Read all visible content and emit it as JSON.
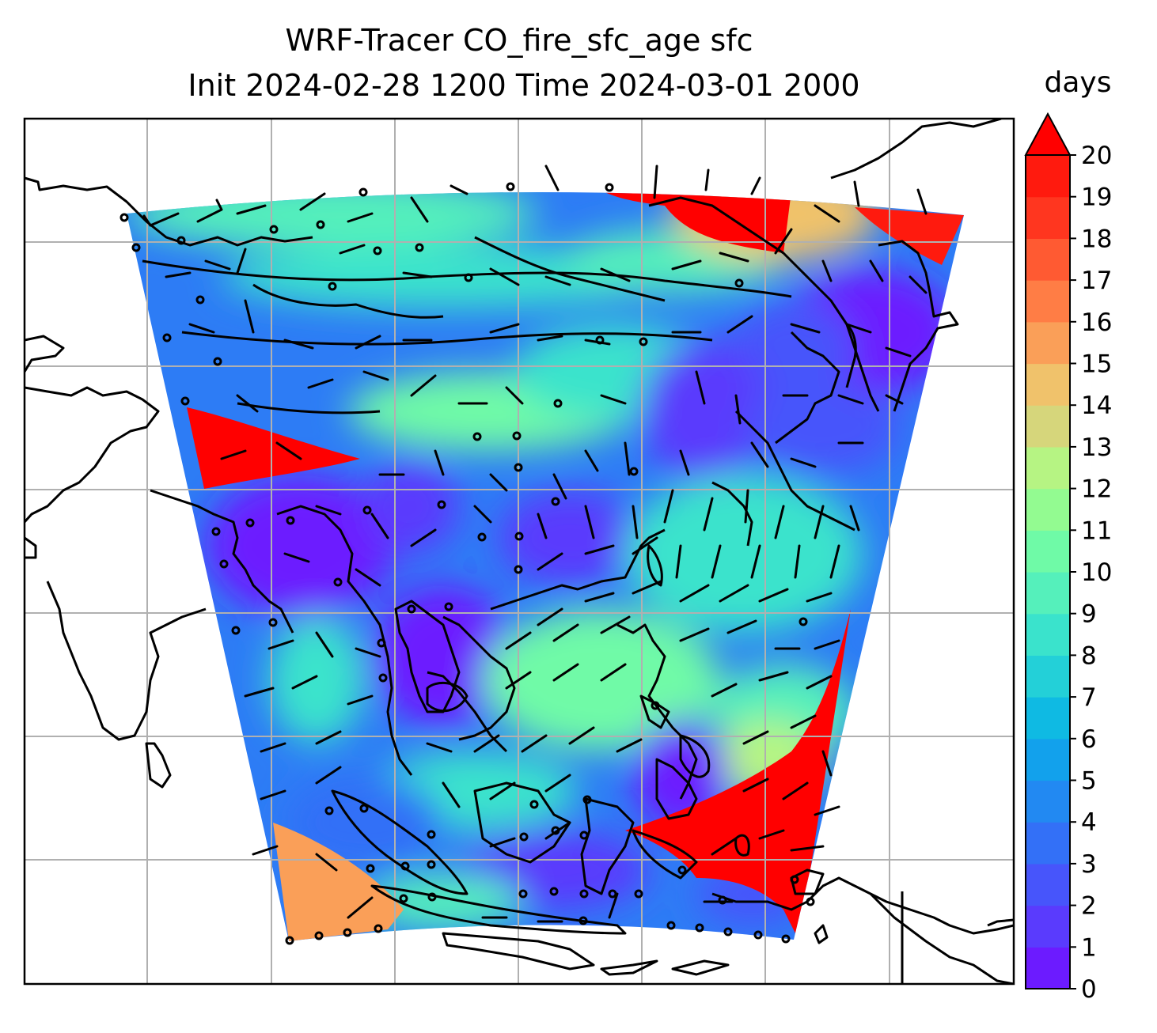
{
  "title": {
    "line1": "WRF-Tracer CO_fire_sfc_age sfc",
    "line2": "Init 2024-02-28 1200 Time 2024-03-01 2000"
  },
  "colorbar": {
    "label": "days",
    "extend": "max",
    "ticks": [
      "0",
      "1",
      "2",
      "3",
      "4",
      "5",
      "6",
      "7",
      "8",
      "9",
      "10",
      "11",
      "12",
      "13",
      "14",
      "15",
      "16",
      "17",
      "18",
      "19",
      "20"
    ],
    "colors": [
      "#6c1bff",
      "#5a3bfd",
      "#4755fb",
      "#3370f7",
      "#2289f2",
      "#12a1ec",
      "#0fbae3",
      "#23d0d8",
      "#3ae3cc",
      "#55f0bb",
      "#6ffaa7",
      "#93fb91",
      "#b6f483",
      "#d6d67b",
      "#f0c26b",
      "#fa9f58",
      "#ff7d45",
      "#ff5a32",
      "#ff361f",
      "#ff1a0e"
    ],
    "over_color": "#ff0000"
  },
  "map": {
    "gridlines": true,
    "coastlines": true,
    "wind_barbs": true,
    "field": "CO_fire_sfc_age"
  }
}
